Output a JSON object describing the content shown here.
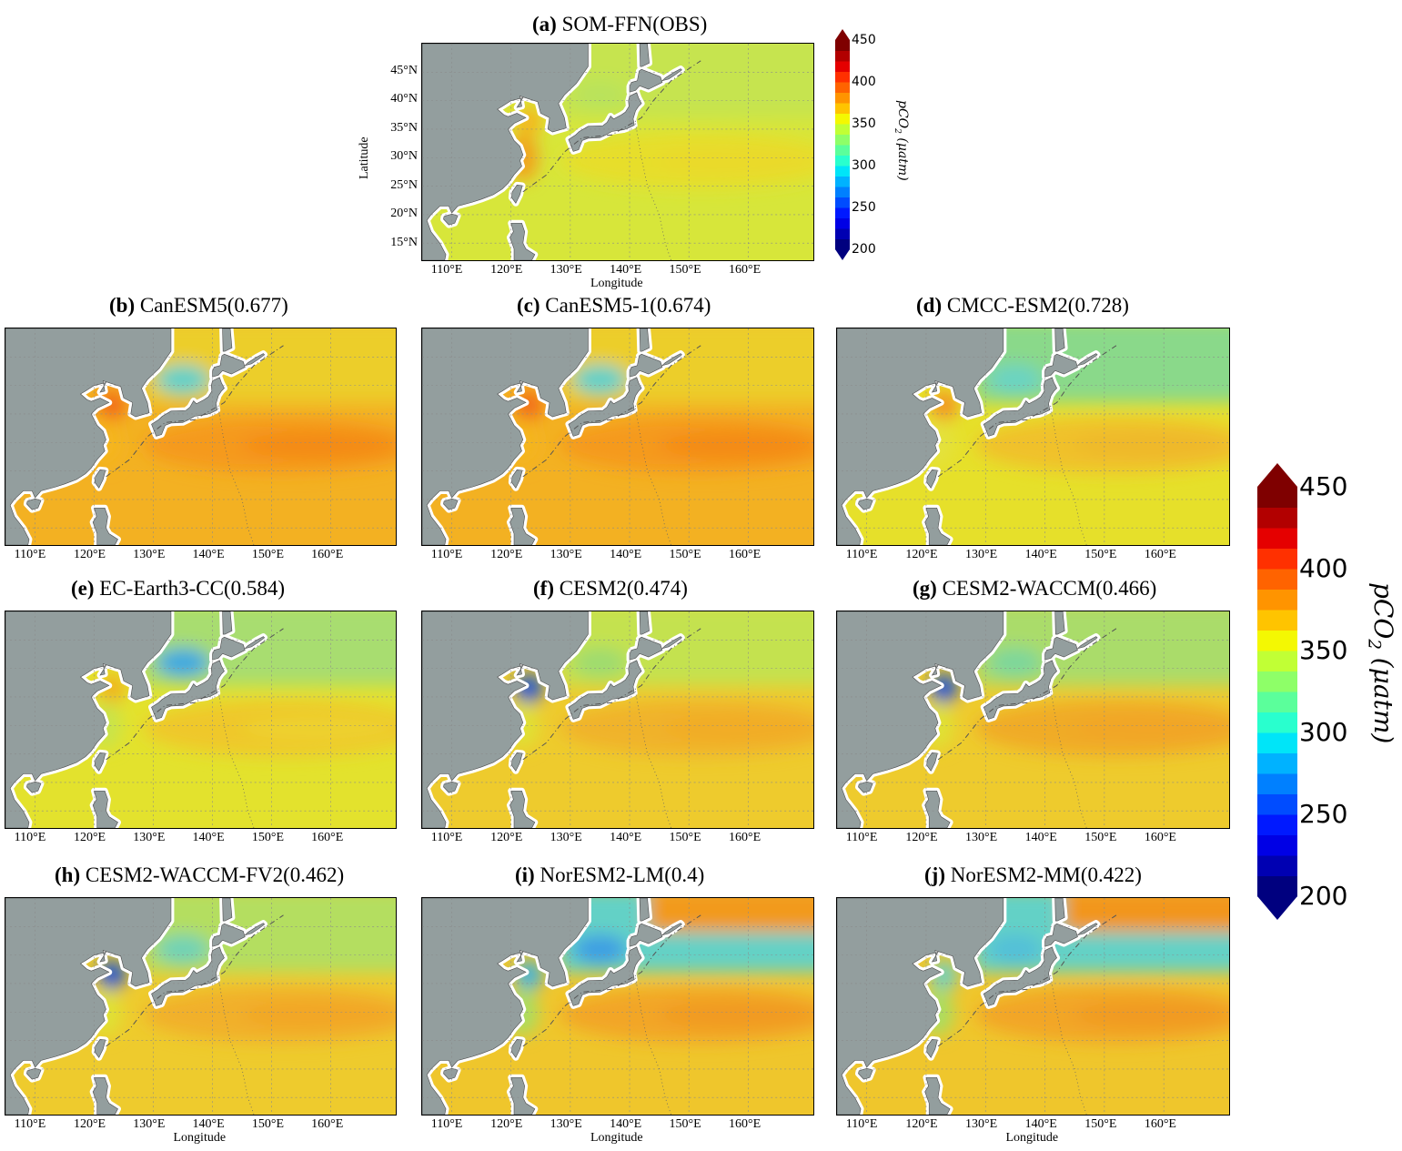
{
  "figure": {
    "panels": [
      {
        "id": "a",
        "letter": "(a)",
        "name": "SOM-FFN(OBS)",
        "score": null,
        "show_lat": true,
        "show_lon_label": true,
        "ocean": "#d7e63a",
        "north": "#c6e44f",
        "band": "#e7de2b",
        "band2": "#ead92b",
        "coast": "#f2a21a",
        "yellowsea": "#f5b61d",
        "japansea": "#b9e35c"
      },
      {
        "id": "b",
        "letter": "(b)",
        "name": "CanESM5",
        "score": "0.677",
        "show_lat": false,
        "show_lon_label": false,
        "ocean": "#f3b122",
        "north": "#ecce2c",
        "band": "#f59a1c",
        "band2": "#f48a14",
        "coast": "#f5b61d",
        "yellowsea": "#f26a14",
        "japansea": "#5fd0c9"
      },
      {
        "id": "c",
        "letter": "(c)",
        "name": "CanESM5-1",
        "score": "0.674",
        "show_lat": false,
        "show_lon_label": false,
        "ocean": "#f3b122",
        "north": "#ecce2c",
        "band": "#f59a1c",
        "band2": "#f48a14",
        "coast": "#f5b61d",
        "yellowsea": "#f26a14",
        "japansea": "#5fd0c9"
      },
      {
        "id": "d",
        "letter": "(d)",
        "name": "CMCC-ESM2",
        "score": "0.728",
        "show_lat": false,
        "show_lon_label": false,
        "ocean": "#e6e02a",
        "north": "#8ad98a",
        "band": "#f0c12a",
        "band2": "#efb82a",
        "coast": "#e4e23c",
        "yellowsea": "#f39320",
        "japansea": "#6bd3c2"
      },
      {
        "id": "e",
        "letter": "(e)",
        "name": "EC-Earth3-CC",
        "score": "0.584",
        "show_lat": false,
        "show_lon_label": false,
        "ocean": "#e3e22d",
        "north": "#a8dd6f",
        "band": "#efc82c",
        "band2": "#edd12d",
        "coast": "#c8e44c",
        "yellowsea": "#f0b31f",
        "japansea": "#3da9e0"
      },
      {
        "id": "f",
        "letter": "(f)",
        "name": "CESM2",
        "score": "0.474",
        "show_lat": false,
        "show_lon_label": false,
        "ocean": "#eecb2d",
        "north": "#c4e250",
        "band": "#f0b32a",
        "band2": "#f2ac27",
        "coast": "#dfe236",
        "yellowsea": "#1f55d6",
        "japansea": "#9edb6f"
      },
      {
        "id": "g",
        "letter": "(g)",
        "name": "CESM2-WACCM",
        "score": "0.466",
        "show_lat": false,
        "show_lon_label": false,
        "ocean": "#eecb2d",
        "north": "#aadc6a",
        "band": "#f0ab27",
        "band2": "#f2a525",
        "coast": "#dfe236",
        "yellowsea": "#1f55d6",
        "japansea": "#7dd79b"
      },
      {
        "id": "h",
        "letter": "(h)",
        "name": "CESM2-WACCM-FV2",
        "score": "0.462",
        "show_lat": false,
        "show_lon_label": true,
        "ocean": "#eecb2d",
        "north": "#b4de60",
        "band": "#f1b02a",
        "band2": "#f2a626",
        "coast": "#dfe236",
        "yellowsea": "#1f55d6",
        "japansea": "#6fd2b6"
      },
      {
        "id": "i",
        "letter": "(i)",
        "name": "NorESM2-LM",
        "score": "0.4",
        "show_lat": false,
        "show_lon_label": true,
        "ocean": "#efc62c",
        "north": "#64d1c6",
        "band": "#f2a626",
        "band2": "#f19a21",
        "coast": "#a9de62",
        "yellowsea": "#3fb2df",
        "japansea": "#3c9fe3",
        "northeast": "#f29a1e"
      },
      {
        "id": "j",
        "letter": "(j)",
        "name": "NorESM2-MM",
        "score": "0.422",
        "show_lat": false,
        "show_lon_label": true,
        "ocean": "#efc62c",
        "north": "#64d1c6",
        "band": "#f2a626",
        "band2": "#f19a21",
        "coast": "#a9de62",
        "yellowsea": "#6fd0c2",
        "japansea": "#52c0d8",
        "northeast": "#f2961e"
      }
    ],
    "x_ticks": [
      "110°E",
      "120°E",
      "130°E",
      "140°E",
      "150°E",
      "160°E"
    ],
    "y_ticks": [
      "45°N",
      "40°N",
      "35°N",
      "30°N",
      "25°N",
      "20°N",
      "15°N"
    ],
    "xlabel": "Longitude",
    "ylabel": "Latitude",
    "colorbar": {
      "label": "pCO",
      "label_sub": "2",
      "label_unit": " (μatm)",
      "ticks": [
        "450",
        "400",
        "350",
        "300",
        "250",
        "200"
      ],
      "range": [
        200,
        450
      ]
    },
    "land_color": "#939e9e",
    "jet_colors": [
      "#00007f",
      "#0000b2",
      "#0000e5",
      "#0019ff",
      "#004cff",
      "#0080ff",
      "#00b2ff",
      "#00e5f8",
      "#29ffce",
      "#5bff9b",
      "#8eff68",
      "#c1ff35",
      "#f4f802",
      "#ffc400",
      "#ff9400",
      "#ff6300",
      "#ff3000",
      "#e50000",
      "#b20000",
      "#7f0000"
    ]
  }
}
